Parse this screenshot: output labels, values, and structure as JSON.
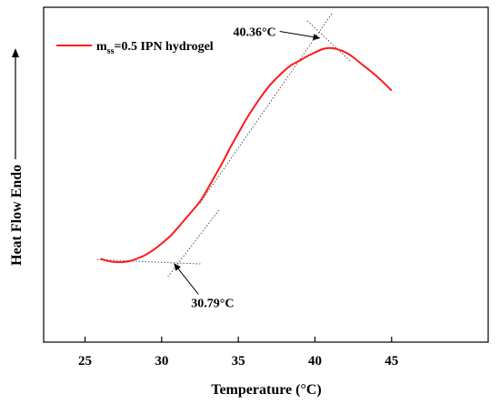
{
  "chart_data": {
    "type": "line",
    "xlabel": "Temperature (°C)",
    "ylabel": "Heat Flow   Endo",
    "ylabel_arrow": "up",
    "xlim": [
      22.3,
      51.3
    ],
    "ylim": [
      0,
      1
    ],
    "xticks": [
      25,
      30,
      35,
      40,
      45
    ],
    "xtick_labels": [
      "25",
      "30",
      "35",
      "40",
      "45"
    ],
    "y_tick_labels_shown": false,
    "grid": false,
    "legend_position": "top-left",
    "colors": {
      "series": "#ff1a1a",
      "tangent": "#555555",
      "axis": "#000000"
    },
    "series": [
      {
        "name_main": "m",
        "name_subscript": "ss",
        "name_rest": "=0.5 IPN hydrogel",
        "x": [
          26.0,
          26.5,
          27.0,
          27.5,
          28.0,
          28.5,
          29.0,
          29.5,
          30.0,
          30.5,
          31.0,
          31.5,
          32.0,
          32.5,
          33.0,
          33.5,
          34.0,
          34.5,
          35.0,
          35.5,
          36.0,
          36.5,
          37.0,
          37.5,
          38.0,
          38.5,
          39.0,
          39.5,
          40.0,
          40.5,
          41.0,
          41.5,
          42.0,
          42.5,
          43.0,
          43.5,
          44.0,
          44.5,
          45.0
        ],
        "y": [
          0.202,
          0.194,
          0.19,
          0.19,
          0.195,
          0.205,
          0.218,
          0.236,
          0.258,
          0.282,
          0.312,
          0.345,
          0.378,
          0.412,
          0.458,
          0.508,
          0.558,
          0.612,
          0.662,
          0.712,
          0.756,
          0.797,
          0.834,
          0.864,
          0.891,
          0.913,
          0.928,
          0.944,
          0.958,
          0.97,
          0.974,
          0.969,
          0.958,
          0.94,
          0.917,
          0.895,
          0.872,
          0.846,
          0.818
        ]
      }
    ],
    "tangent_lines": [
      {
        "x": [
          25.8,
          32.6
        ],
        "y": [
          0.199,
          0.183
        ]
      },
      {
        "x": [
          30.4,
          33.8
        ],
        "y": [
          0.136,
          0.385
        ]
      },
      {
        "x": [
          32.5,
          41.1
        ],
        "y": [
          0.406,
          1.1
        ]
      },
      {
        "x": [
          39.5,
          42.3
        ],
        "y": [
          1.074,
          0.927
        ]
      }
    ],
    "annotations": [
      {
        "text": "40.36°C",
        "x": 40.36,
        "y": 1.01,
        "arrow_from": [
          37.7,
          1.035
        ]
      },
      {
        "text": "30.79°C",
        "x": 30.79,
        "y": 0.186,
        "arrow_from": [
          32.4,
          0.072
        ]
      }
    ]
  }
}
